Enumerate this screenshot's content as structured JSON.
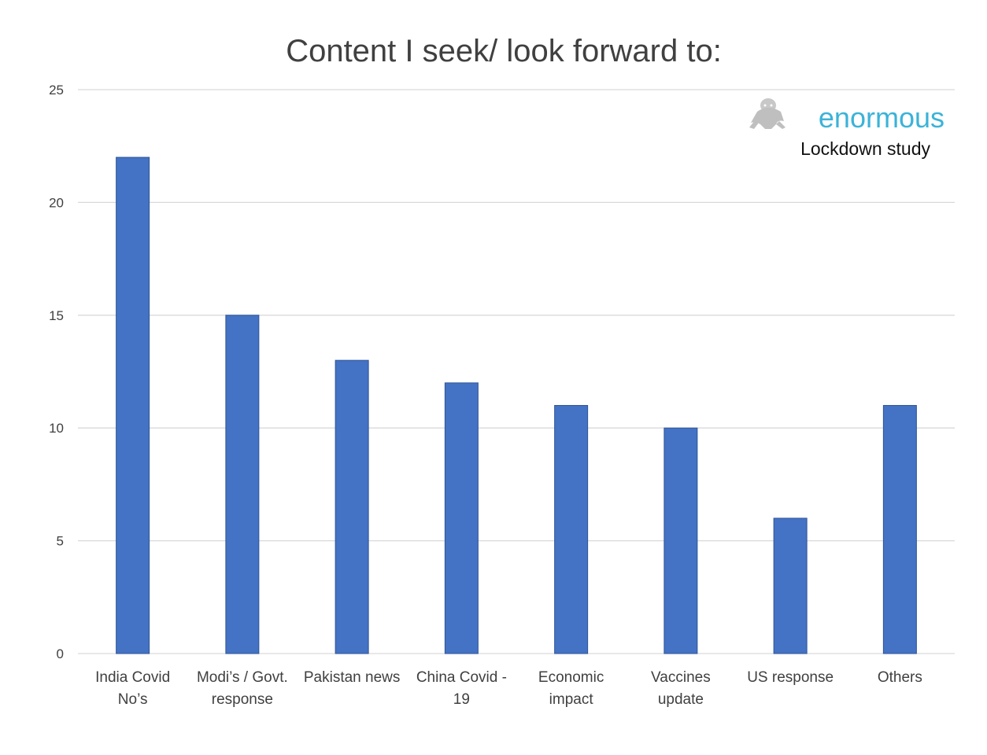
{
  "chart_data": {
    "type": "bar",
    "title": "Content I seek/ look forward to:",
    "xlabel": "",
    "ylabel": "",
    "categories": [
      [
        "India Covid",
        "No’s"
      ],
      [
        "Modi’s / Govt.",
        "response"
      ],
      [
        "Pakistan news"
      ],
      [
        "China Covid -",
        "19"
      ],
      [
        "Economic",
        "impact"
      ],
      [
        "Vaccines",
        "update"
      ],
      [
        "US response"
      ],
      [
        "Others"
      ]
    ],
    "values": [
      22,
      15,
      13,
      12,
      11,
      10,
      6,
      11
    ],
    "ylim": [
      0,
      25
    ],
    "yticks": [
      0,
      5,
      10,
      15,
      20,
      25
    ],
    "grid": true,
    "legend": "none"
  },
  "brand": {
    "name": "enormous",
    "subtitle": "Lockdown study",
    "icon": "yeti-logo-icon"
  },
  "colors": {
    "bar": "#4472C4",
    "bar_edge": "#2F5597",
    "grid": "#D9D9D9",
    "text": "#404040",
    "brand": "#3BB3D8",
    "logo": "#BFBFBF"
  }
}
